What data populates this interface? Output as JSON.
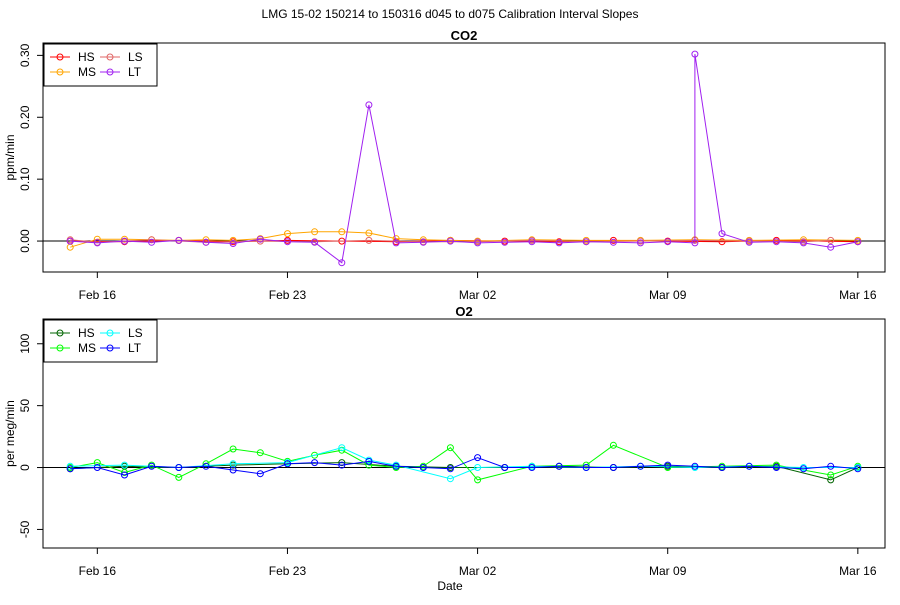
{
  "figure": {
    "title": "LMG   15-02    150214 to 150316    d045 to d075   Calibration Interval Slopes",
    "xlabel": "Date"
  },
  "chart_data": [
    {
      "type": "line",
      "title": "CO2",
      "xlabel": "",
      "ylabel": "ppm/min",
      "x_unit": "date",
      "xlim": [
        "2015-02-14",
        "2015-03-16"
      ],
      "ylim": [
        -0.05,
        0.32
      ],
      "x_ticks": [
        "2015-02-16",
        "2015-02-23",
        "2015-03-02",
        "2015-03-09",
        "2015-03-16"
      ],
      "x_tick_labels": [
        "Feb 16",
        "Feb 23",
        "Mar 02",
        "Mar 09",
        "Mar 16"
      ],
      "y_ticks": [
        0.0,
        0.1,
        0.2,
        0.3
      ],
      "y_tick_labels": [
        "0.00",
        "0.10",
        "0.20",
        "0.30"
      ],
      "reference_line_y": 0,
      "legend": {
        "placement": "top-left",
        "columns": 2,
        "order": [
          "HS",
          "LS",
          "MS",
          "LT"
        ]
      },
      "series": [
        {
          "name": "HS",
          "color": "#ff0000",
          "points": [
            [
              "2015-02-15",
              0.0
            ],
            [
              "2015-02-17",
              -0.001
            ],
            [
              "2015-02-19",
              0.001
            ],
            [
              "2015-02-21",
              -0.001
            ],
            [
              "2015-02-23",
              0.001
            ],
            [
              "2015-02-25",
              0.0
            ],
            [
              "2015-02-27",
              -0.001
            ],
            [
              "2015-03-01",
              0.001
            ],
            [
              "2015-03-03",
              0.0
            ],
            [
              "2015-03-05",
              -0.001
            ],
            [
              "2015-03-07",
              0.001
            ],
            [
              "2015-03-09",
              0.0
            ],
            [
              "2015-03-11",
              -0.001
            ],
            [
              "2015-03-13",
              0.001
            ],
            [
              "2015-03-16",
              -0.001
            ]
          ]
        },
        {
          "name": "MS",
          "color": "#ffa500",
          "points": [
            [
              "2015-02-15",
              -0.01
            ],
            [
              "2015-02-16",
              0.003
            ],
            [
              "2015-02-17",
              0.003
            ],
            [
              "2015-02-18",
              0.002
            ],
            [
              "2015-02-19",
              0.001
            ],
            [
              "2015-02-20",
              0.002
            ],
            [
              "2015-02-21",
              0.001
            ],
            [
              "2015-02-22",
              0.004
            ],
            [
              "2015-02-23",
              0.012
            ],
            [
              "2015-02-24",
              0.015
            ],
            [
              "2015-02-25",
              0.015
            ],
            [
              "2015-02-26",
              0.013
            ],
            [
              "2015-02-27",
              0.004
            ],
            [
              "2015-02-28",
              0.002
            ],
            [
              "2015-03-01",
              0.001
            ],
            [
              "2015-03-02",
              0.0
            ],
            [
              "2015-03-04",
              0.002
            ],
            [
              "2015-03-06",
              0.001
            ],
            [
              "2015-03-08",
              0.001
            ],
            [
              "2015-03-10",
              0.002
            ],
            [
              "2015-03-12",
              0.001
            ],
            [
              "2015-03-14",
              0.002
            ],
            [
              "2015-03-16",
              0.001
            ]
          ]
        },
        {
          "name": "LS",
          "color": "#e06666",
          "points": [
            [
              "2015-02-15",
              0.002
            ],
            [
              "2015-02-16",
              -0.002
            ],
            [
              "2015-02-18",
              0.002
            ],
            [
              "2015-02-20",
              -0.002
            ],
            [
              "2015-02-22",
              0.0
            ],
            [
              "2015-02-24",
              -0.001
            ],
            [
              "2015-02-26",
              0.001
            ],
            [
              "2015-02-28",
              -0.001
            ],
            [
              "2015-03-02",
              -0.001
            ],
            [
              "2015-03-04",
              0.001
            ],
            [
              "2015-03-06",
              -0.001
            ],
            [
              "2015-03-08",
              0.0
            ],
            [
              "2015-03-10",
              0.001
            ],
            [
              "2015-03-12",
              0.0
            ],
            [
              "2015-03-14",
              -0.001
            ],
            [
              "2015-03-15",
              0.001
            ]
          ]
        },
        {
          "name": "LT",
          "color": "#a020f0",
          "points": [
            [
              "2015-02-15",
              0.0
            ],
            [
              "2015-02-16",
              -0.003
            ],
            [
              "2015-02-17",
              0.0
            ],
            [
              "2015-02-18",
              -0.002
            ],
            [
              "2015-02-19",
              0.001
            ],
            [
              "2015-02-20",
              -0.002
            ],
            [
              "2015-02-21",
              -0.004
            ],
            [
              "2015-02-22",
              0.003
            ],
            [
              "2015-02-23",
              -0.001
            ],
            [
              "2015-02-24",
              -0.002
            ],
            [
              "2015-02-25",
              -0.035
            ],
            [
              "2015-02-26",
              0.22
            ],
            [
              "2015-02-27",
              -0.003
            ],
            [
              "2015-02-28",
              -0.002
            ],
            [
              "2015-03-01",
              0.0
            ],
            [
              "2015-03-02",
              -0.003
            ],
            [
              "2015-03-03",
              -0.002
            ],
            [
              "2015-03-04",
              -0.001
            ],
            [
              "2015-03-05",
              -0.003
            ],
            [
              "2015-03-06",
              -0.001
            ],
            [
              "2015-03-07",
              -0.002
            ],
            [
              "2015-03-08",
              -0.003
            ],
            [
              "2015-03-09",
              -0.001
            ],
            [
              "2015-03-10",
              -0.003
            ],
            [
              "2015-03-10",
              0.302
            ],
            [
              "2015-03-11",
              0.012
            ],
            [
              "2015-03-12",
              -0.002
            ],
            [
              "2015-03-13",
              -0.001
            ],
            [
              "2015-03-14",
              -0.003
            ],
            [
              "2015-03-15",
              -0.01
            ],
            [
              "2015-03-16",
              -0.001
            ]
          ]
        }
      ]
    },
    {
      "type": "line",
      "title": "O2",
      "xlabel": "Date",
      "ylabel": "per meg/min",
      "x_unit": "date",
      "xlim": [
        "2015-02-14",
        "2015-03-16"
      ],
      "ylim": [
        -65,
        120
      ],
      "x_ticks": [
        "2015-02-16",
        "2015-02-23",
        "2015-03-02",
        "2015-03-09",
        "2015-03-16"
      ],
      "x_tick_labels": [
        "Feb 16",
        "Feb 23",
        "Mar 02",
        "Mar 09",
        "Mar 16"
      ],
      "y_ticks": [
        -50,
        0,
        50,
        100
      ],
      "y_tick_labels": [
        "-50",
        "0",
        "50",
        "100"
      ],
      "reference_line_y": 0,
      "legend": {
        "placement": "top-left",
        "columns": 2,
        "order": [
          "HS",
          "LS",
          "MS",
          "LT"
        ]
      },
      "series": [
        {
          "name": "HS",
          "color": "#006400",
          "points": [
            [
              "2015-02-15",
              -1
            ],
            [
              "2015-02-17",
              1
            ],
            [
              "2015-02-19",
              0
            ],
            [
              "2015-02-21",
              2
            ],
            [
              "2015-02-23",
              3
            ],
            [
              "2015-02-25",
              4
            ],
            [
              "2015-02-27",
              1
            ],
            [
              "2015-03-01",
              0
            ],
            [
              "2015-03-03",
              0
            ],
            [
              "2015-03-05",
              1
            ],
            [
              "2015-03-07",
              0
            ],
            [
              "2015-03-09",
              1
            ],
            [
              "2015-03-11",
              0
            ],
            [
              "2015-03-13",
              1
            ],
            [
              "2015-03-15",
              -10
            ],
            [
              "2015-03-16",
              0
            ]
          ]
        },
        {
          "name": "MS",
          "color": "#00ff00",
          "points": [
            [
              "2015-02-15",
              0
            ],
            [
              "2015-02-16",
              4
            ],
            [
              "2015-02-17",
              -4
            ],
            [
              "2015-02-18",
              2
            ],
            [
              "2015-02-19",
              -8
            ],
            [
              "2015-02-20",
              3
            ],
            [
              "2015-02-21",
              15
            ],
            [
              "2015-02-22",
              12
            ],
            [
              "2015-02-23",
              5
            ],
            [
              "2015-02-24",
              10
            ],
            [
              "2015-02-25",
              14
            ],
            [
              "2015-02-26",
              2
            ],
            [
              "2015-02-27",
              0
            ],
            [
              "2015-02-28",
              1
            ],
            [
              "2015-03-01",
              16
            ],
            [
              "2015-03-02",
              -10
            ],
            [
              "2015-03-04",
              1
            ],
            [
              "2015-03-06",
              2
            ],
            [
              "2015-03-07",
              18
            ],
            [
              "2015-03-09",
              0
            ],
            [
              "2015-03-11",
              1
            ],
            [
              "2015-03-13",
              2
            ],
            [
              "2015-03-15",
              -6
            ],
            [
              "2015-03-16",
              1
            ]
          ]
        },
        {
          "name": "LS",
          "color": "#00ffff",
          "points": [
            [
              "2015-02-15",
              1
            ],
            [
              "2015-02-17",
              2
            ],
            [
              "2015-02-19",
              0
            ],
            [
              "2015-02-21",
              3
            ],
            [
              "2015-02-23",
              4
            ],
            [
              "2015-02-25",
              16
            ],
            [
              "2015-02-26",
              6
            ],
            [
              "2015-02-27",
              2
            ],
            [
              "2015-03-01",
              -9
            ],
            [
              "2015-03-02",
              0
            ],
            [
              "2015-03-04",
              1
            ],
            [
              "2015-03-06",
              0
            ],
            [
              "2015-03-08",
              1
            ],
            [
              "2015-03-10",
              0
            ],
            [
              "2015-03-12",
              1
            ],
            [
              "2015-03-14",
              0
            ],
            [
              "2015-03-16",
              0
            ]
          ]
        },
        {
          "name": "LT",
          "color": "#0000ff",
          "points": [
            [
              "2015-02-15",
              -1
            ],
            [
              "2015-02-16",
              0
            ],
            [
              "2015-02-17",
              -6
            ],
            [
              "2015-02-18",
              1
            ],
            [
              "2015-02-19",
              0
            ],
            [
              "2015-02-20",
              1
            ],
            [
              "2015-02-21",
              -2
            ],
            [
              "2015-02-22",
              -5
            ],
            [
              "2015-02-23",
              3
            ],
            [
              "2015-02-24",
              4
            ],
            [
              "2015-02-25",
              2
            ],
            [
              "2015-02-26",
              5
            ],
            [
              "2015-02-27",
              1
            ],
            [
              "2015-02-28",
              0
            ],
            [
              "2015-03-01",
              -1
            ],
            [
              "2015-03-02",
              8
            ],
            [
              "2015-03-03",
              0
            ],
            [
              "2015-03-04",
              0
            ],
            [
              "2015-03-05",
              1
            ],
            [
              "2015-03-06",
              0
            ],
            [
              "2015-03-07",
              0
            ],
            [
              "2015-03-08",
              1
            ],
            [
              "2015-03-09",
              2
            ],
            [
              "2015-03-10",
              1
            ],
            [
              "2015-03-11",
              0
            ],
            [
              "2015-03-12",
              1
            ],
            [
              "2015-03-13",
              0
            ],
            [
              "2015-03-14",
              -1
            ],
            [
              "2015-03-15",
              1
            ],
            [
              "2015-03-16",
              -1
            ]
          ]
        }
      ]
    }
  ]
}
